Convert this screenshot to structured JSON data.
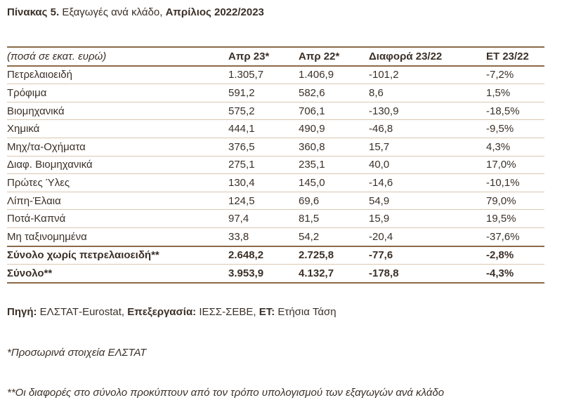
{
  "header": {
    "number": "Πίνακας 5.",
    "text": "Εξαγωγές ανά κλάδο,",
    "period": "Απρίλιος 2022/2023"
  },
  "table": {
    "columns": [
      "(ποσά σε εκατ. ευρώ)",
      "Απρ 23*",
      "Απρ 22*",
      "Διαφορά 23/22",
      "ΕΤ 23/22"
    ],
    "rows": [
      [
        "Πετρελαιοειδή",
        "1.305,7",
        "1.406,9",
        "-101,2",
        "-7,2%"
      ],
      [
        "Τρόφιμα",
        "591,2",
        "582,6",
        "8,6",
        "1,5%"
      ],
      [
        "Βιομηχανικά",
        "575,2",
        "706,1",
        "-130,9",
        "-18,5%"
      ],
      [
        "Χημικά",
        "444,1",
        "490,9",
        "-46,8",
        "-9,5%"
      ],
      [
        "Μηχ/τα-Οχήματα",
        "376,5",
        "360,8",
        "15,7",
        "4,3%"
      ],
      [
        "Διαφ. Βιομηχανικά",
        "275,1",
        "235,1",
        "40,0",
        "17,0%"
      ],
      [
        "Πρώτες Ύλες",
        "130,4",
        "145,0",
        "-14,6",
        "-10,1%"
      ],
      [
        "Λίπη-Έλαια",
        "124,5",
        "69,6",
        "54,9",
        "79,0%"
      ],
      [
        "Ποτά-Καπνά",
        "97,4",
        "81,5",
        "15,9",
        "19,5%"
      ],
      [
        "Μη ταξινομημένα",
        "33,8",
        "54,2",
        "-20,4",
        "-37,6%"
      ]
    ],
    "total_rows": [
      [
        "Σύνολο χωρίς πετρελαιοειδή**",
        "2.648,2",
        "2.725,8",
        "-77,6",
        "-2,8%"
      ],
      [
        "Σύνολο**",
        "3.953,9",
        "4.132,7",
        "-178,8",
        "-4,3%"
      ]
    ]
  },
  "footer": {
    "source_label": "Πηγή:",
    "source": "ΕΛΣΤΑΤ-Eurostat,",
    "processing_label": "Επεξεργασία:",
    "processing": "ΙΕΣΣ-ΣΕΒΕ,",
    "et_label": "ΕΤ:",
    "et": "Ετήσια Τάση",
    "note1": "*Προσωρινά στοιχεία ΕΛΣΤΑΤ",
    "note2": "**Οι διαφορές στο σύνολο προκύπτουν από τον τρόπο υπολογισμού των εξαγωγών ανά κλάδο"
  }
}
